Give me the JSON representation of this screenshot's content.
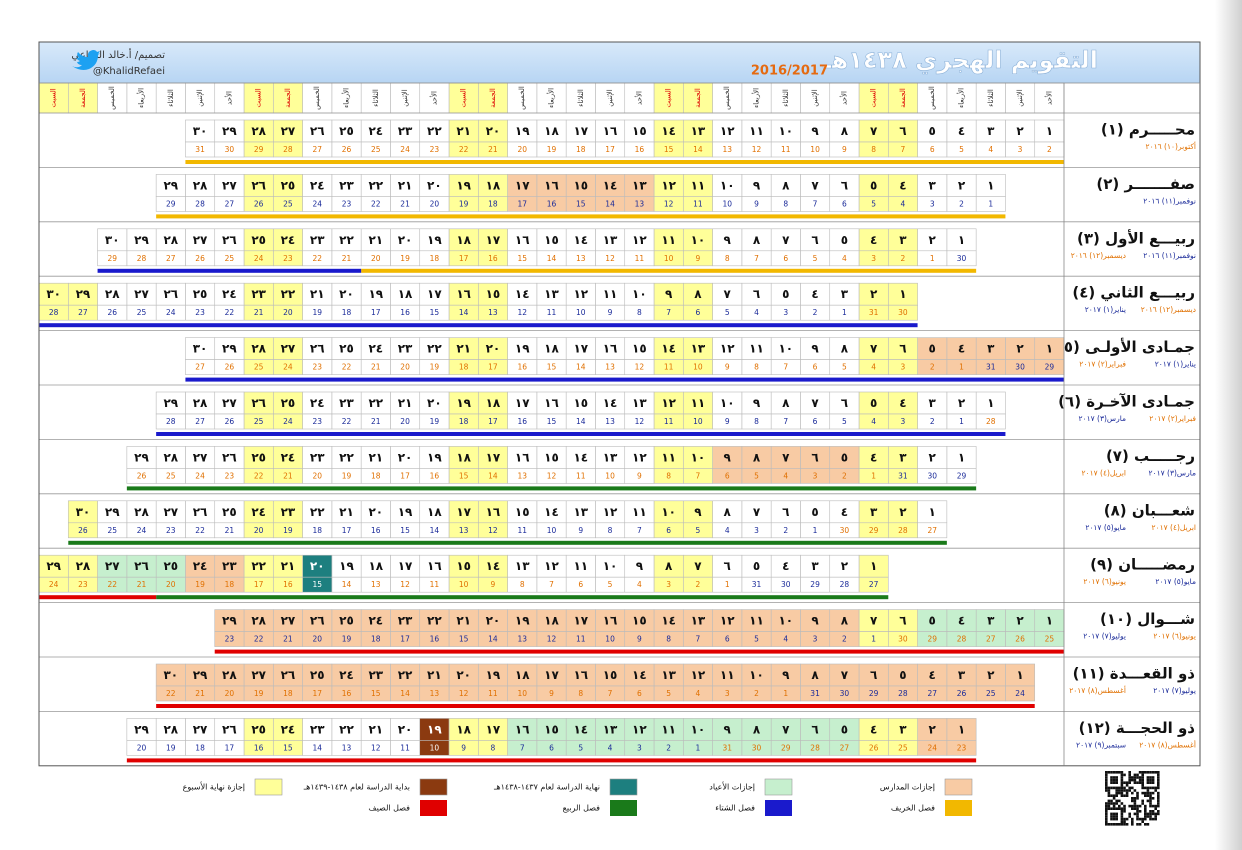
{
  "header": {
    "title": "التقويم الهجري ١٤٣٨هـ",
    "years": "2016/2017",
    "designer": "تصميم/ أ.خالد الرفاعي",
    "handle": "@KhalidRefaei"
  },
  "weekdays": [
    "الأحد",
    "الإثنين",
    "الثلاثاء",
    "الأربعاء",
    "الخميس",
    "الجمعة",
    "السبت"
  ],
  "hijri_days": [
    "١",
    "٢",
    "٣",
    "٤",
    "٥",
    "٦",
    "٧",
    "٨",
    "٩",
    "١٠",
    "١١",
    "١٢",
    "١٣",
    "١٤",
    "١٥",
    "١٦",
    "١٧",
    "١٨",
    "١٩",
    "٢٠",
    "٢١",
    "٢٢",
    "٢٣",
    "٢٤",
    "٢٥",
    "٢٦",
    "٢٧",
    "٢٨",
    "٢٩",
    "٣٠"
  ],
  "legend": [
    {
      "label": "إجازات المدارس",
      "color": "#f8cba4"
    },
    {
      "label": "إجازات الأعياد",
      "color": "#c6efce"
    },
    {
      "label": "نهاية الدراسة لعام ١٤٣٧-١٤٣٨هـ",
      "color": "#1d7f7f"
    },
    {
      "label": "بداية الدراسة لعام ١٤٣٨-١٤٣٩هـ",
      "color": "#8b3a10"
    },
    {
      "label": "إجازة نهاية الأسبوع",
      "color": "#ffff99"
    }
  ],
  "seasons_legend": [
    {
      "label": "فصل الخريف",
      "color": "#f2b800"
    },
    {
      "label": "فصل الشتاء",
      "color": "#1a1acc"
    },
    {
      "label": "فصل الربيع",
      "color": "#1a7a1a"
    },
    {
      "label": "فصل الصيف",
      "color": "#e00000"
    }
  ],
  "months": [
    {
      "name": "محـــــرم (١)",
      "greg": [
        {
          "text": "أكتوبر(١٠) ٢٠١٦",
          "color": "#e07000"
        }
      ],
      "start": 0,
      "gregorian": [
        2,
        3,
        4,
        5,
        6,
        7,
        8,
        9,
        10,
        11,
        12,
        13,
        14,
        15,
        16,
        17,
        18,
        19,
        20,
        21,
        22,
        23,
        24,
        25,
        26,
        27,
        28,
        29,
        30,
        31
      ],
      "holidays": [],
      "seasons": [
        {
          "season": 0,
          "from": 1,
          "to": 30
        }
      ]
    },
    {
      "name": "صفـــــــر (٢)",
      "greg": [
        {
          "text": "نوفمبر(١١) ٢٠١٦",
          "color": "#1a2a99"
        }
      ],
      "start": 2,
      "gregorian": [
        1,
        2,
        3,
        4,
        5,
        6,
        7,
        8,
        9,
        10,
        11,
        12,
        13,
        14,
        15,
        16,
        17,
        18,
        19,
        20,
        21,
        22,
        23,
        24,
        25,
        26,
        27,
        28,
        29
      ],
      "holidays": [
        {
          "kind": 0,
          "from": 13,
          "to": 17
        }
      ],
      "seasons": [
        {
          "season": 0,
          "from": 1,
          "to": 29
        }
      ]
    },
    {
      "name": "ربيـــع الأول (٣)",
      "greg": [
        {
          "text": "نوفمبر(١١) ٢٠١٦",
          "color": "#1a2a99"
        },
        {
          "text": "ديسمبر(١٢) ٢٠١٦",
          "color": "#e07000"
        }
      ],
      "start": 3,
      "gregorian": [
        30,
        1,
        2,
        3,
        4,
        5,
        6,
        7,
        8,
        9,
        10,
        11,
        12,
        13,
        14,
        15,
        16,
        17,
        18,
        19,
        20,
        21,
        22,
        23,
        24,
        25,
        26,
        27,
        28,
        29
      ],
      "holidays": [],
      "seasons": [
        {
          "season": 0,
          "from": 1,
          "to": 21
        },
        {
          "season": 1,
          "from": 22,
          "to": 30
        }
      ]
    },
    {
      "name": "ربيـــع الثاني (٤)",
      "greg": [
        {
          "text": "ديسمبر(١٢) ٢٠١٦",
          "color": "#e07000"
        },
        {
          "text": "يناير(١) ٢٠١٧",
          "color": "#1a2a99"
        }
      ],
      "start": 5,
      "gregorian": [
        30,
        31,
        1,
        2,
        3,
        4,
        5,
        6,
        7,
        8,
        9,
        10,
        11,
        12,
        13,
        14,
        15,
        16,
        17,
        18,
        19,
        20,
        21,
        22,
        23,
        24,
        25,
        26,
        27,
        28
      ],
      "holidays": [],
      "seasons": [
        {
          "season": 1,
          "from": 1,
          "to": 30
        }
      ]
    },
    {
      "name": "جمـادى الأولـى (٥)",
      "greg": [
        {
          "text": "يناير(١) ٢٠١٧",
          "color": "#1a2a99"
        },
        {
          "text": "فبراير(٢) ٢٠١٧",
          "color": "#e07000"
        }
      ],
      "start": 0,
      "gregorian": [
        29,
        30,
        31,
        1,
        2,
        3,
        4,
        5,
        6,
        7,
        8,
        9,
        10,
        11,
        12,
        13,
        14,
        15,
        16,
        17,
        18,
        19,
        20,
        21,
        22,
        23,
        24,
        25,
        26,
        27
      ],
      "holidays": [
        {
          "kind": 0,
          "from": 1,
          "to": 5
        }
      ],
      "seasons": [
        {
          "season": 1,
          "from": 1,
          "to": 30
        }
      ]
    },
    {
      "name": "جمـادى الآخـرة (٦)",
      "greg": [
        {
          "text": "فبراير(٢) ٢٠١٧",
          "color": "#e07000"
        },
        {
          "text": "مارس(٣) ٢٠١٧",
          "color": "#1a2a99"
        }
      ],
      "start": 2,
      "gregorian": [
        28,
        1,
        2,
        3,
        4,
        5,
        6,
        7,
        8,
        9,
        10,
        11,
        12,
        13,
        14,
        15,
        16,
        17,
        18,
        19,
        20,
        21,
        22,
        23,
        24,
        25,
        26,
        27,
        28
      ],
      "holidays": [],
      "seasons": [
        {
          "season": 1,
          "from": 1,
          "to": 29
        }
      ]
    },
    {
      "name": "رجـــــب (٧)",
      "greg": [
        {
          "text": "مارس(٣) ٢٠١٧",
          "color": "#1a2a99"
        },
        {
          "text": "ابريل(٤) ٢٠١٧",
          "color": "#e07000"
        }
      ],
      "start": 3,
      "gregorian": [
        29,
        30,
        31,
        1,
        2,
        3,
        4,
        5,
        6,
        7,
        8,
        9,
        10,
        11,
        12,
        13,
        14,
        15,
        16,
        17,
        18,
        19,
        20,
        21,
        22,
        23,
        24,
        25,
        26
      ],
      "holidays": [
        {
          "kind": 0,
          "from": 5,
          "to": 9
        }
      ],
      "seasons": [
        {
          "season": 2,
          "from": 1,
          "to": 29
        }
      ]
    },
    {
      "name": "شعـــبان (٨)",
      "greg": [
        {
          "text": "ابريل(٤) ٢٠١٧",
          "color": "#e07000"
        },
        {
          "text": "مايو(٥) ٢٠١٧",
          "color": "#1a2a99"
        }
      ],
      "start": 4,
      "gregorian": [
        27,
        28,
        29,
        30,
        1,
        2,
        3,
        4,
        5,
        6,
        7,
        8,
        9,
        10,
        11,
        12,
        13,
        14,
        15,
        16,
        17,
        18,
        19,
        20,
        21,
        22,
        23,
        24,
        25,
        26
      ],
      "holidays": [],
      "seasons": [
        {
          "season": 2,
          "from": 1,
          "to": 30
        }
      ]
    },
    {
      "name": "رمضـــــان (٩)",
      "greg": [
        {
          "text": "مايو(٥) ٢٠١٧",
          "color": "#1a2a99"
        },
        {
          "text": "يونيو(٦) ٢٠١٧",
          "color": "#e07000"
        }
      ],
      "start": 6,
      "gregorian": [
        27,
        28,
        29,
        30,
        31,
        1,
        2,
        3,
        4,
        5,
        6,
        7,
        8,
        9,
        10,
        11,
        12,
        13,
        14,
        15,
        16,
        17,
        18,
        19,
        20,
        21,
        22,
        23,
        24
      ],
      "holidays": [
        {
          "kind": 2,
          "from": 20,
          "to": 20
        },
        {
          "kind": 0,
          "from": 23,
          "to": 24
        },
        {
          "kind": 1,
          "from": 25,
          "to": 27
        }
      ],
      "seasons": [
        {
          "season": 2,
          "from": 1,
          "to": 25
        },
        {
          "season": 3,
          "from": 26,
          "to": 29
        }
      ]
    },
    {
      "name": "شـــوال (١٠)",
      "greg": [
        {
          "text": "يونيو(٦) ٢٠١٧",
          "color": "#e07000"
        },
        {
          "text": "يوليو(٧) ٢٠١٧",
          "color": "#1a2a99"
        }
      ],
      "start": 0,
      "gregorian": [
        25,
        26,
        27,
        28,
        29,
        30,
        1,
        2,
        3,
        4,
        5,
        6,
        7,
        8,
        9,
        10,
        11,
        12,
        13,
        14,
        15,
        16,
        17,
        18,
        19,
        20,
        21,
        22,
        23
      ],
      "holidays": [
        {
          "kind": 1,
          "from": 1,
          "to": 5
        },
        {
          "kind": 0,
          "from": 8,
          "to": 29
        }
      ],
      "seasons": [
        {
          "season": 3,
          "from": 1,
          "to": 29
        }
      ]
    },
    {
      "name": "ذو القعـــدة (١١)",
      "greg": [
        {
          "text": "يوليو(٧) ٢٠١٧",
          "color": "#1a2a99"
        },
        {
          "text": "أغسطس(٨) ٢٠١٧",
          "color": "#e07000"
        }
      ],
      "start": 1,
      "gregorian": [
        24,
        25,
        26,
        27,
        28,
        29,
        30,
        31,
        1,
        2,
        3,
        4,
        5,
        6,
        7,
        8,
        9,
        10,
        11,
        12,
        13,
        14,
        15,
        16,
        17,
        18,
        19,
        20,
        21,
        22
      ],
      "holidays": [
        {
          "kind": 0,
          "from": 1,
          "to": 30
        }
      ],
      "seasons": [
        {
          "season": 3,
          "from": 1,
          "to": 30
        }
      ]
    },
    {
      "name": "ذو الحجـــة (١٢)",
      "greg": [
        {
          "text": "أغسطس(٨) ٢٠١٧",
          "color": "#e07000"
        },
        {
          "text": "سبتمبر(٩) ٢٠١٧",
          "color": "#1a2a99"
        }
      ],
      "start": 3,
      "gregorian": [
        23,
        24,
        25,
        26,
        27,
        28,
        29,
        30,
        31,
        1,
        2,
        3,
        4,
        5,
        6,
        7,
        8,
        9,
        10,
        11,
        12,
        13,
        14,
        15,
        16,
        17,
        18,
        19,
        20
      ],
      "holidays": [
        {
          "kind": 0,
          "from": 1,
          "to": 2
        },
        {
          "kind": 1,
          "from": 5,
          "to": 16
        },
        {
          "kind": 3,
          "from": 19,
          "to": 19
        }
      ],
      "seasons": [
        {
          "season": 3,
          "from": 1,
          "to": 29
        }
      ]
    }
  ]
}
